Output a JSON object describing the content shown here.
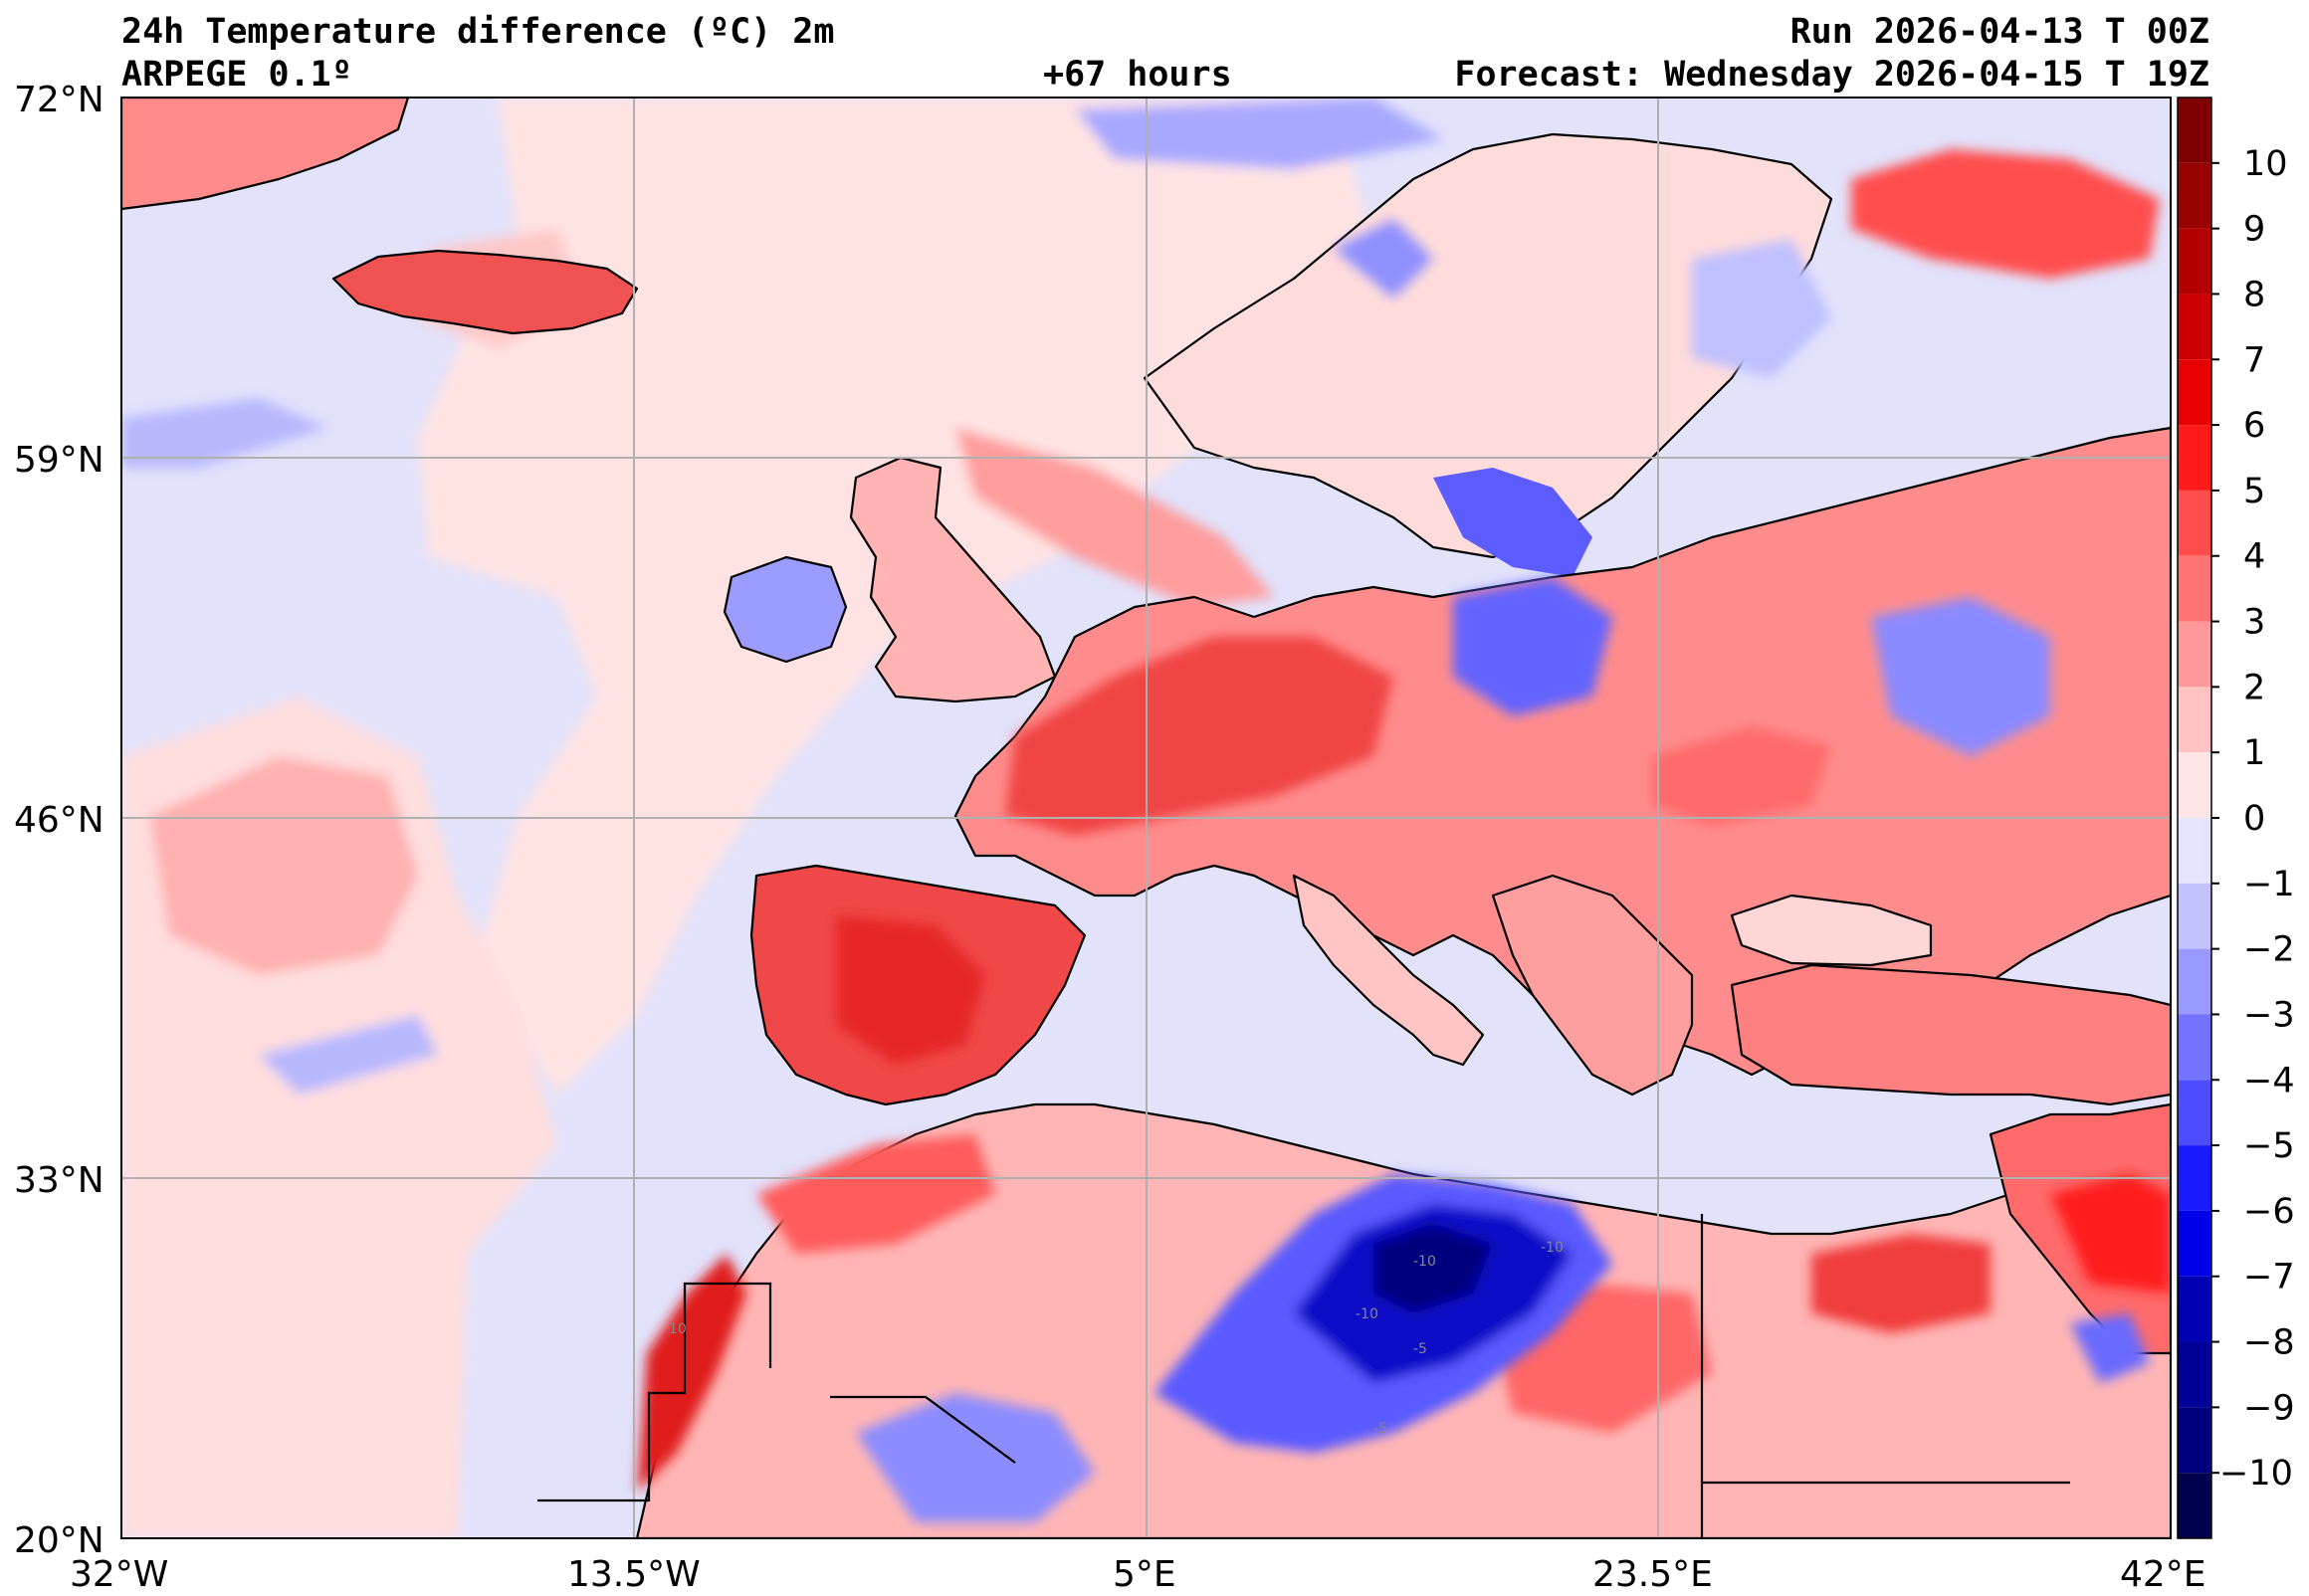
{
  "header": {
    "title": "24h Temperature difference (ºC) 2m",
    "model": "ARPEGE 0.1º",
    "run": "Run 2026-04-13 T 00Z",
    "lead": "+67 hours",
    "forecast": "Forecast: Wednesday 2026-04-15 T 19Z"
  },
  "map": {
    "lat_labels": [
      "72°N",
      "59°N",
      "46°N",
      "33°N",
      "20°N"
    ],
    "lon_labels": [
      "32°W",
      "13.5°W",
      "5°E",
      "23.5°E",
      "42°E"
    ],
    "lat_range": [
      20,
      72
    ],
    "lon_range": [
      -32,
      42
    ],
    "gridlines": true,
    "contour_labels": [
      "-10",
      "-10",
      "-10",
      "-5",
      "-5",
      "10"
    ]
  },
  "colorbar": {
    "tick_labels": [
      "10",
      "9",
      "8",
      "7",
      "6",
      "5",
      "4",
      "3",
      "2",
      "1",
      "0",
      "−1",
      "−2",
      "−3",
      "−4",
      "−5",
      "−6",
      "−7",
      "−8",
      "−9",
      "−10"
    ],
    "levels": [
      11,
      10,
      9,
      8,
      7,
      6,
      5,
      4,
      3,
      2,
      1,
      0,
      -1,
      -2,
      -3,
      -4,
      -5,
      -6,
      -7,
      -8,
      -9,
      -10,
      -11
    ],
    "colors": [
      "#7f0000",
      "#990000",
      "#b30000",
      "#cc0000",
      "#e60000",
      "#ff1a1a",
      "#ff4d4d",
      "#ff7373",
      "#ff9999",
      "#ffc2c2",
      "#ffe5e5",
      "#e5e5ff",
      "#c2c2ff",
      "#9999ff",
      "#7373ff",
      "#4d4dff",
      "#1a1aff",
      "#0000e6",
      "#0000b3",
      "#000099",
      "#00007f",
      "#00004d"
    ]
  },
  "palette": {
    "ocean_base": "#e2e2fb",
    "land_base": "#ffd9d9",
    "coast": "#000000",
    "grid": "#b0b0b0"
  }
}
